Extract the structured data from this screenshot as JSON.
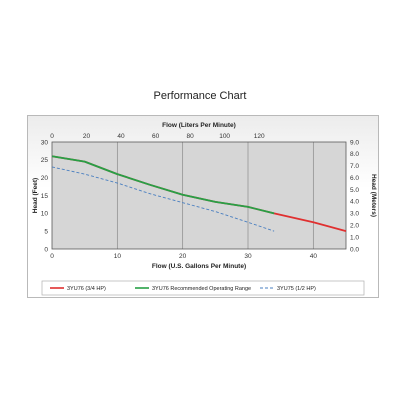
{
  "title": "Performance Chart",
  "chart_data": {
    "type": "line",
    "x_bottom": {
      "label": "Flow (U.S. Gallons Per Minute)",
      "range": [
        0,
        45
      ],
      "ticks": [
        0,
        10,
        20,
        30,
        40
      ]
    },
    "x_top": {
      "label": "Flow (Liters Per Minute)",
      "range": [
        0,
        170.3
      ],
      "ticks": [
        0,
        20,
        40,
        60,
        80,
        100,
        120
      ]
    },
    "y_left": {
      "label": "Head (Feet)",
      "range": [
        0,
        30
      ],
      "ticks": [
        0,
        5,
        10,
        15,
        20,
        25,
        30
      ]
    },
    "y_right": {
      "label": "Head (Meters)",
      "range": [
        0,
        9.0
      ],
      "ticks": [
        "0.0",
        "1.0",
        "2.0",
        "3.0",
        "4.0",
        "5.0",
        "6.0",
        "7.0",
        "8.0",
        "9.0"
      ]
    },
    "grid": "vertical",
    "legend_position": "bottom",
    "series": [
      {
        "name": "3YU76 (3/4 HP)",
        "color": "#e03030",
        "style": "solid",
        "points": [
          [
            0,
            26
          ],
          [
            5,
            24.5
          ],
          [
            10,
            21
          ],
          [
            15,
            18
          ],
          [
            20,
            15.2
          ],
          [
            25,
            13.2
          ],
          [
            30,
            11.8
          ],
          [
            34,
            10
          ],
          [
            40,
            7.5
          ],
          [
            45,
            5
          ]
        ]
      },
      {
        "name": "3YU76 Recommended Operating Range",
        "color": "#27a046",
        "style": "solid",
        "points": [
          [
            0,
            26
          ],
          [
            5,
            24.5
          ],
          [
            10,
            21
          ],
          [
            15,
            18
          ],
          [
            20,
            15.2
          ],
          [
            25,
            13.2
          ],
          [
            30,
            11.8
          ],
          [
            34,
            10
          ]
        ]
      },
      {
        "name": "3YU75 (1/2 HP)",
        "color": "#4a7fc0",
        "style": "dashed",
        "points": [
          [
            0,
            23
          ],
          [
            5,
            21
          ],
          [
            10,
            18.5
          ],
          [
            15,
            15.5
          ],
          [
            20,
            13
          ],
          [
            25,
            10.5
          ],
          [
            30,
            7.5
          ],
          [
            34,
            5
          ]
        ]
      }
    ]
  }
}
